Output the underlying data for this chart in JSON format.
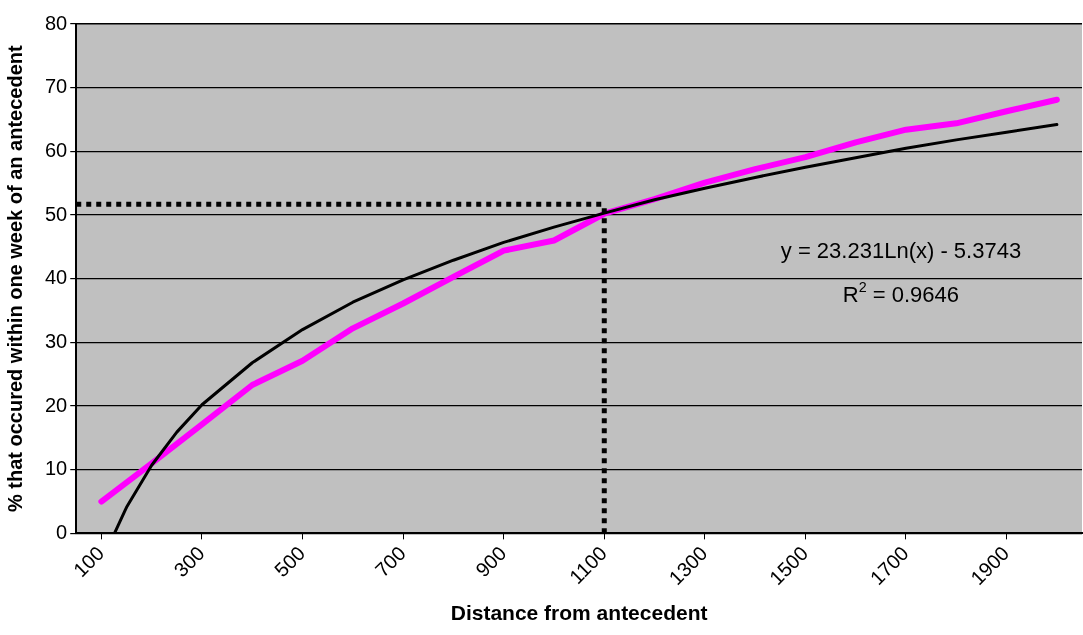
{
  "chart_data": {
    "type": "line",
    "xlabel": "Distance from antecedent",
    "ylabel": "% that occured within one week of an antecedent",
    "x": [
      100,
      200,
      300,
      400,
      500,
      600,
      700,
      800,
      900,
      1000,
      1100,
      1200,
      1300,
      1400,
      1500,
      1600,
      1700,
      1800,
      1900,
      2000
    ],
    "series": [
      {
        "color": "#ff00ff",
        "values": [
          5,
          11,
          17.1,
          23.3,
          27.1,
          32.2,
          36.1,
          40.3,
          44.4,
          46,
          50.2,
          52.5,
          55.1,
          57.2,
          59.1,
          61.4,
          63.4,
          64.4,
          66.3,
          68.1
        ]
      },
      {
        "type": "line",
        "color": "#000000",
        "x": [
          126,
          150,
          200,
          250,
          300,
          400,
          500,
          600,
          700,
          800,
          900,
          1000,
          1100,
          1200,
          1300,
          1400,
          1500,
          1600,
          1700,
          1800,
          1900,
          2000
        ],
        "values": [
          0,
          4.1,
          10.7,
          15.9,
          20.2,
          26.8,
          32,
          36.3,
          39.8,
          42.9,
          45.7,
          48.1,
          50.3,
          52.4,
          54.2,
          55.9,
          57.5,
          59,
          60.5,
          61.8,
          63,
          64.2
        ]
      }
    ],
    "xlim": [
      50,
      2050
    ],
    "xticks": [
      100,
      300,
      500,
      700,
      900,
      1100,
      1300,
      1500,
      1700,
      1900
    ],
    "ylim": [
      0,
      80
    ],
    "yticks": [
      0,
      10,
      20,
      30,
      40,
      50,
      60,
      70,
      80
    ],
    "grid": "y",
    "marker": "none",
    "line_style": "solid",
    "ref_lines": [
      {
        "axis": "y",
        "value": 51.7,
        "line_style": "dotted",
        "color": "#000000"
      },
      {
        "axis": "x",
        "value": 1100,
        "line_style": "dotted",
        "color": "#000000"
      }
    ],
    "annotations": [
      "y = 23.231Ln(x) - 5.3743",
      "R$^{2}$ = 0.9646"
    ]
  }
}
